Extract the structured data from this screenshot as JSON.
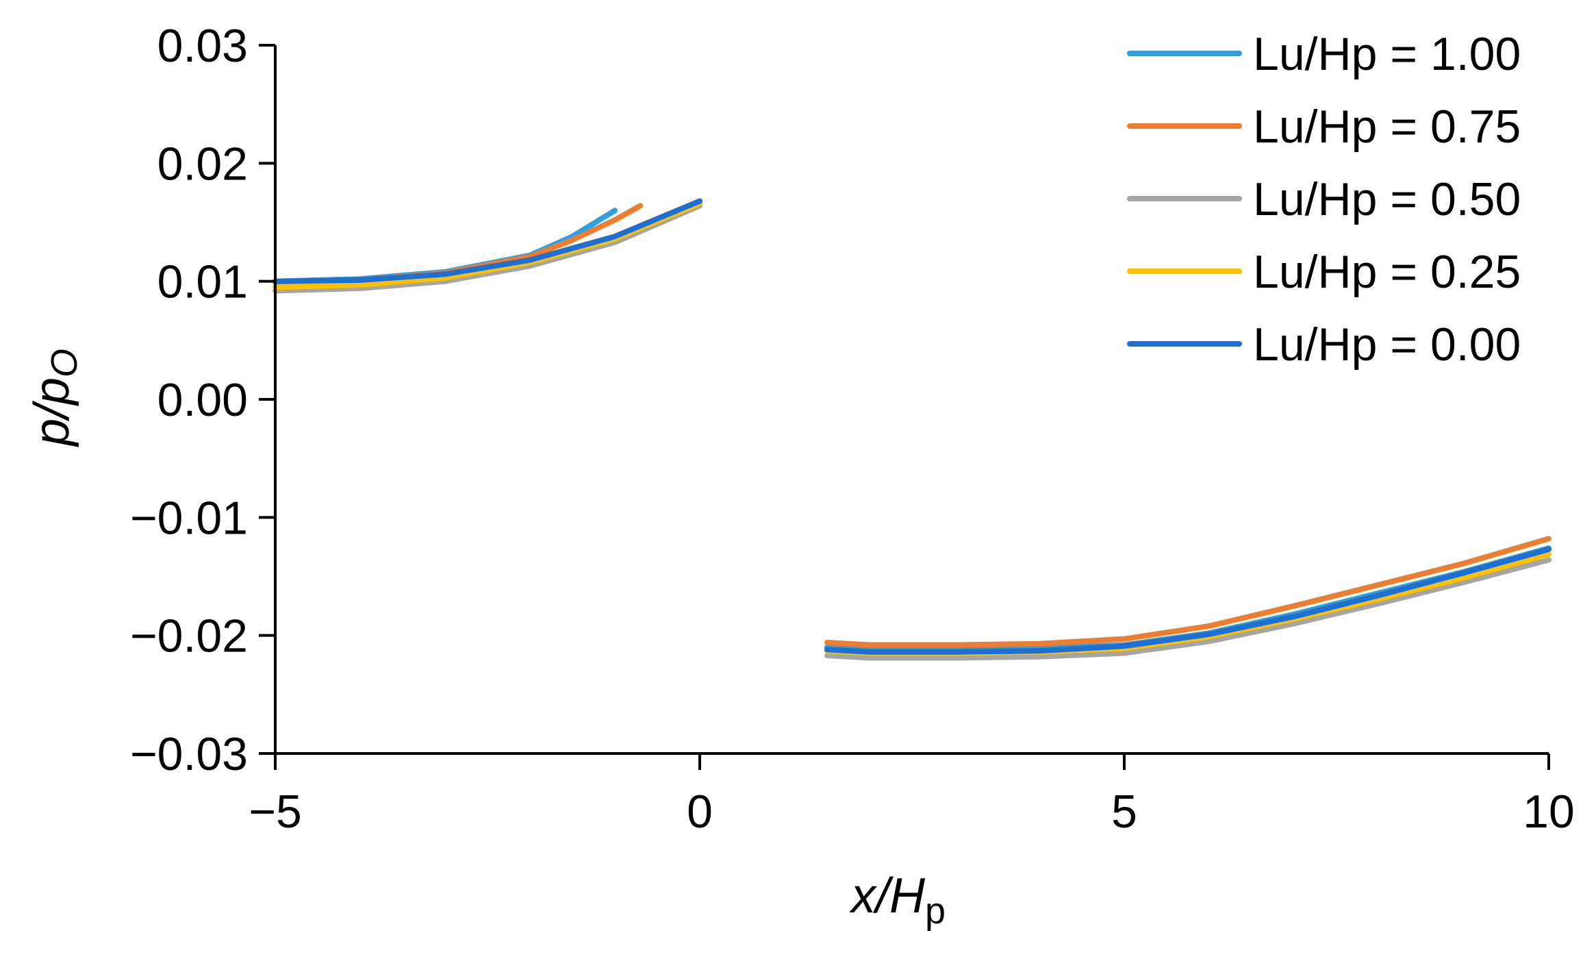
{
  "chart_data": {
    "type": "line",
    "title": "",
    "xlabel": {
      "main": "x/H",
      "sub": "p"
    },
    "ylabel": {
      "main": "p/p",
      "sub": "O"
    },
    "xlim": [
      -5,
      10
    ],
    "ylim": [
      -0.03,
      0.03
    ],
    "x_ticks": [
      -5,
      0,
      5,
      10
    ],
    "x_tick_labels": [
      "−5",
      "0",
      "5",
      "10"
    ],
    "y_ticks": [
      -0.03,
      -0.02,
      -0.01,
      0.0,
      0.01,
      0.02,
      0.03
    ],
    "y_tick_labels": [
      "−0.03",
      "−0.02",
      "−0.01",
      "0.00",
      "0.01",
      "0.02",
      "0.03"
    ],
    "grid": false,
    "legend_position": "top-right",
    "series": [
      {
        "name": "Lu/Hp = 1.00",
        "color": "#2e9fe0",
        "segments": [
          [
            [
              -5,
              0.01
            ],
            [
              -4,
              0.0102
            ],
            [
              -3,
              0.0108
            ],
            [
              -2,
              0.0122
            ],
            [
              -1.5,
              0.0138
            ],
            [
              -1.0,
              0.016
            ]
          ],
          [
            [
              1.5,
              -0.021
            ],
            [
              2,
              -0.0212
            ],
            [
              3,
              -0.0212
            ],
            [
              4,
              -0.0211
            ],
            [
              5,
              -0.0208
            ],
            [
              6,
              -0.0198
            ],
            [
              7,
              -0.0182
            ],
            [
              8,
              -0.0164
            ],
            [
              9,
              -0.0146
            ],
            [
              10,
              -0.0126
            ]
          ]
        ]
      },
      {
        "name": "Lu/Hp = 0.75",
        "color": "#ed7d31",
        "segments": [
          [
            [
              -5,
              0.0099
            ],
            [
              -4,
              0.0101
            ],
            [
              -3,
              0.0107
            ],
            [
              -2,
              0.0121
            ],
            [
              -1.5,
              0.0135
            ],
            [
              -1.0,
              0.0152
            ],
            [
              -0.7,
              0.0164
            ]
          ],
          [
            [
              1.5,
              -0.0206
            ],
            [
              2,
              -0.0208
            ],
            [
              3,
              -0.0208
            ],
            [
              4,
              -0.0207
            ],
            [
              5,
              -0.0203
            ],
            [
              6,
              -0.0192
            ],
            [
              7,
              -0.0175
            ],
            [
              8,
              -0.0157
            ],
            [
              9,
              -0.0139
            ],
            [
              10,
              -0.0118
            ]
          ]
        ]
      },
      {
        "name": "Lu/Hp = 0.50",
        "color": "#a5a5a5",
        "segments": [
          [
            [
              -5,
              0.0092
            ],
            [
              -4,
              0.0094
            ],
            [
              -3,
              0.01
            ],
            [
              -2,
              0.0113
            ],
            [
              -1,
              0.0133
            ],
            [
              0,
              0.0164
            ]
          ],
          [
            [
              1.5,
              -0.0217
            ],
            [
              2,
              -0.0219
            ],
            [
              3,
              -0.0219
            ],
            [
              4,
              -0.0218
            ],
            [
              5,
              -0.0215
            ],
            [
              6,
              -0.0205
            ],
            [
              7,
              -0.019
            ],
            [
              8,
              -0.0173
            ],
            [
              9,
              -0.0155
            ],
            [
              10,
              -0.0136
            ]
          ]
        ]
      },
      {
        "name": "Lu/Hp = 0.25",
        "color": "#ffc000",
        "segments": [
          [
            [
              -5,
              0.0095
            ],
            [
              -4,
              0.0097
            ],
            [
              -3,
              0.0103
            ],
            [
              -2,
              0.0116
            ],
            [
              -1,
              0.0136
            ],
            [
              0,
              0.0166
            ]
          ],
          [
            [
              1.5,
              -0.0213
            ],
            [
              2,
              -0.0215
            ],
            [
              3,
              -0.0215
            ],
            [
              4,
              -0.0214
            ],
            [
              5,
              -0.0211
            ],
            [
              6,
              -0.0201
            ],
            [
              7,
              -0.0186
            ],
            [
              8,
              -0.0169
            ],
            [
              9,
              -0.0151
            ],
            [
              10,
              -0.0131
            ]
          ]
        ]
      },
      {
        "name": "Lu/Hp = 0.00",
        "color": "#1f6fd0",
        "segments": [
          [
            [
              -5,
              0.01
            ],
            [
              -4,
              0.0101
            ],
            [
              -3,
              0.0106
            ],
            [
              -2,
              0.0118
            ],
            [
              -1,
              0.0138
            ],
            [
              0,
              0.0168
            ]
          ],
          [
            [
              1.5,
              -0.0212
            ],
            [
              2,
              -0.0214
            ],
            [
              3,
              -0.0214
            ],
            [
              4,
              -0.0213
            ],
            [
              5,
              -0.0209
            ],
            [
              6,
              -0.0199
            ],
            [
              7,
              -0.0184
            ],
            [
              8,
              -0.0166
            ],
            [
              9,
              -0.0147
            ],
            [
              10,
              -0.0127
            ]
          ]
        ]
      }
    ]
  }
}
